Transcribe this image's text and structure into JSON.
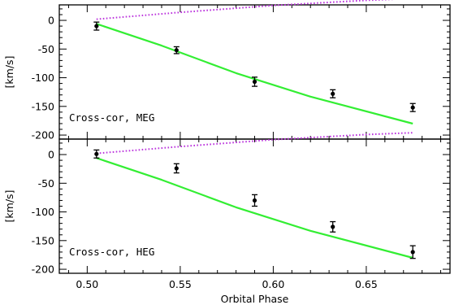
{
  "chart_data": [
    {
      "type": "scatter",
      "panel": "top",
      "annotation": "Cross-cor, MEG",
      "ylabel": "[km/s]",
      "xlabel": "",
      "xlim": [
        0.485,
        0.695
      ],
      "ylim": [
        -207,
        27
      ],
      "x_ticks": [
        0.5,
        0.55,
        0.6,
        0.65
      ],
      "x_tick_labels": [
        "",
        "",
        "",
        ""
      ],
      "y_ticks": [
        0,
        -50,
        -100,
        -150,
        -200
      ],
      "y_tick_labels": [
        "0",
        "-50",
        "-100",
        "-150",
        "-200"
      ],
      "points": [
        {
          "x": 0.505,
          "y": -10,
          "err": 7
        },
        {
          "x": 0.548,
          "y": -52,
          "err": 6
        },
        {
          "x": 0.59,
          "y": -107,
          "err": 8
        },
        {
          "x": 0.632,
          "y": -128,
          "err": 7
        },
        {
          "x": 0.675,
          "y": -152,
          "err": 7
        }
      ],
      "series": [
        {
          "style": "solid",
          "color": "#33ee33",
          "x": [
            0.505,
            0.54,
            0.58,
            0.62,
            0.675
          ],
          "y": [
            -6,
            -44,
            -92,
            -133,
            -180
          ]
        },
        {
          "style": "dotted",
          "color": "#bb33dd",
          "x": [
            0.505,
            0.55,
            0.6,
            0.65,
            0.675
          ],
          "y": [
            2,
            14,
            26,
            35,
            38
          ]
        }
      ]
    },
    {
      "type": "scatter",
      "panel": "bottom",
      "annotation": "Cross-cor, HEG",
      "ylabel": "[km/s]",
      "xlabel": "Orbital Phase",
      "xlim": [
        0.485,
        0.695
      ],
      "ylim": [
        -207,
        27
      ],
      "x_ticks": [
        0.5,
        0.55,
        0.6,
        0.65
      ],
      "x_tick_labels": [
        "0.50",
        "0.55",
        "0.60",
        "0.65"
      ],
      "y_ticks": [
        0,
        -50,
        -100,
        -150,
        -200
      ],
      "y_tick_labels": [
        "0",
        "-50",
        "-100",
        "-150",
        "-200"
      ],
      "points": [
        {
          "x": 0.505,
          "y": 1,
          "err": 7
        },
        {
          "x": 0.548,
          "y": -24,
          "err": 8
        },
        {
          "x": 0.59,
          "y": -80,
          "err": 10
        },
        {
          "x": 0.632,
          "y": -126,
          "err": 9
        },
        {
          "x": 0.675,
          "y": -170,
          "err": 11
        }
      ],
      "series": [
        {
          "style": "solid",
          "color": "#33ee33",
          "x": [
            0.505,
            0.54,
            0.58,
            0.62,
            0.675
          ],
          "y": [
            -6,
            -44,
            -92,
            -133,
            -180
          ]
        },
        {
          "style": "dotted",
          "color": "#bb33dd",
          "x": [
            0.505,
            0.55,
            0.6,
            0.65,
            0.675
          ],
          "y": [
            2,
            14,
            26,
            35,
            38
          ]
        }
      ]
    }
  ]
}
